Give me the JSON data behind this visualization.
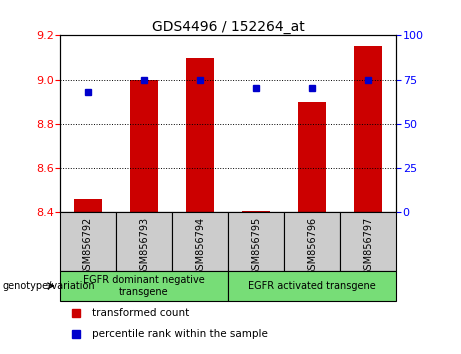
{
  "title": "GDS4496 / 152264_at",
  "categories": [
    "GSM856792",
    "GSM856793",
    "GSM856794",
    "GSM856795",
    "GSM856796",
    "GSM856797"
  ],
  "red_values": [
    8.46,
    9.0,
    9.1,
    8.405,
    8.9,
    9.15
  ],
  "blue_values": [
    68,
    75,
    75,
    70,
    70,
    75
  ],
  "ylim_left": [
    8.4,
    9.2
  ],
  "ylim_right": [
    0,
    100
  ],
  "yticks_left": [
    8.4,
    8.6,
    8.8,
    9.0,
    9.2
  ],
  "yticks_right": [
    0,
    25,
    50,
    75,
    100
  ],
  "group1_label": "EGFR dominant negative\ntransgene",
  "group2_label": "EGFR activated transgene",
  "group1_indices": [
    0,
    1,
    2
  ],
  "group2_indices": [
    3,
    4,
    5
  ],
  "genotype_label": "genotype/variation",
  "legend1": "transformed count",
  "legend2": "percentile rank within the sample",
  "bar_color": "#cc0000",
  "dot_color": "#0000cc",
  "group_bg_color": "#77dd77",
  "xticklabel_bg": "#cccccc",
  "base_value": 8.4,
  "bar_width": 0.5,
  "marker_size": 5,
  "title_fontsize": 10,
  "tick_fontsize": 8,
  "label_fontsize": 7
}
